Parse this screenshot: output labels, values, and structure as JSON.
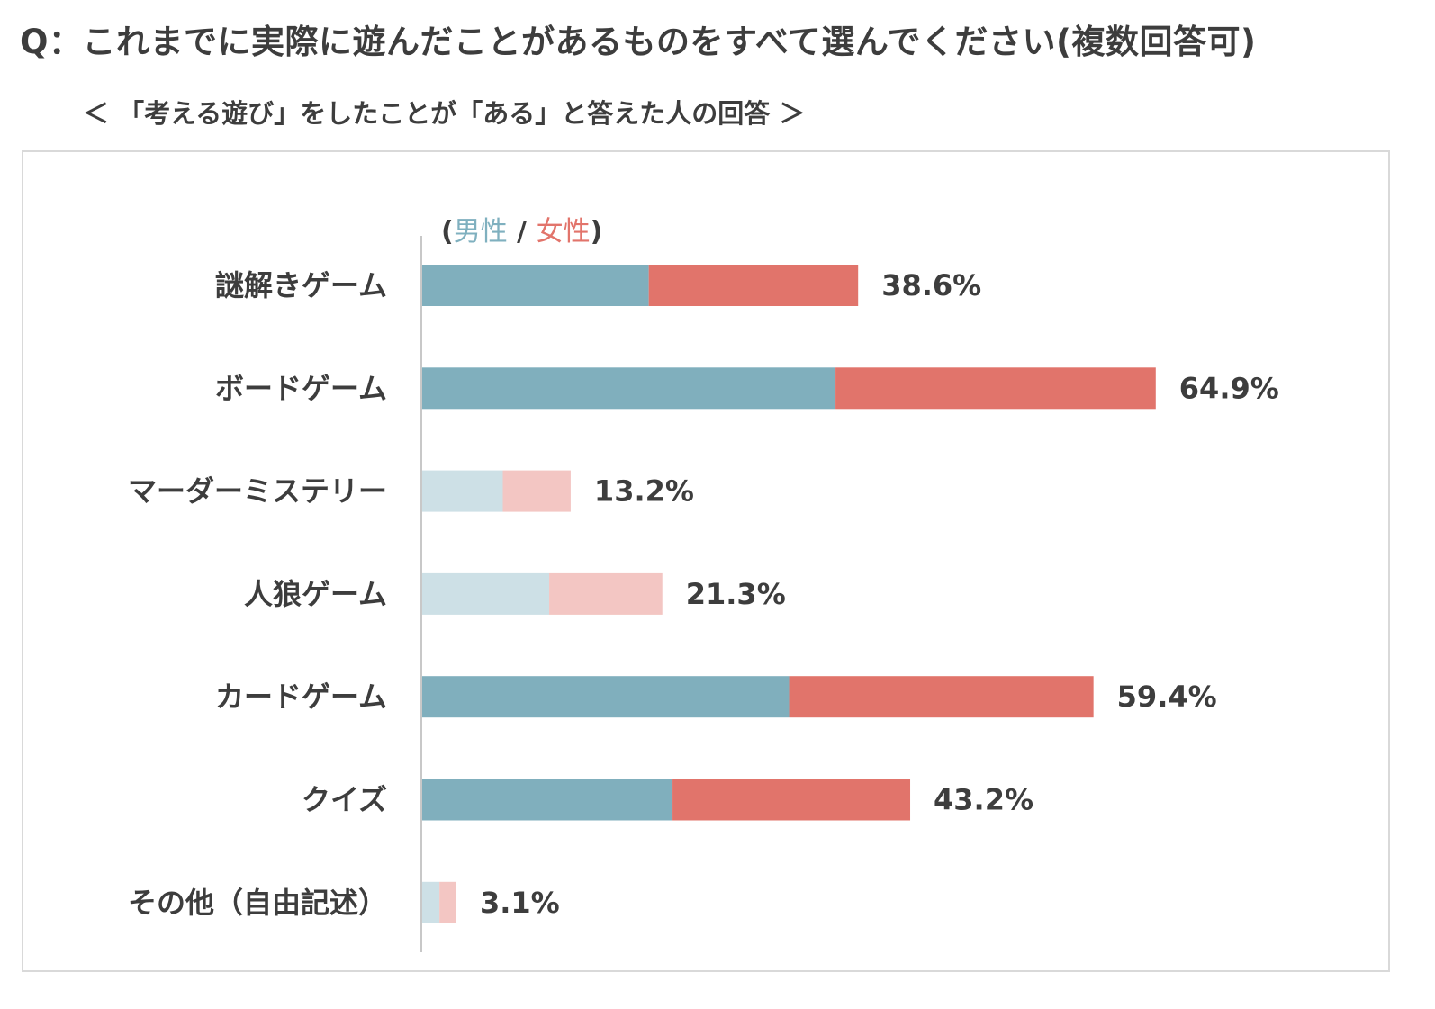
{
  "header": {
    "question": "Q：これまでに実際に遊んだことがあるものをすべて選んでください(複数回答可)",
    "subtitle": "＜ 「考える遊び」をしたことが「ある」と答えた人の回答 ＞"
  },
  "legend": {
    "open": "(",
    "male": "男性",
    "sep": " / ",
    "female": "女性",
    "close": ")"
  },
  "colors": {
    "male": "#80afbd",
    "female": "#e1746b",
    "male_light": "#cde0e6",
    "female_light": "#f3c6c3",
    "axis": "#c8c8c8",
    "text": "#3d3d3d"
  },
  "chart_data": {
    "type": "bar",
    "orientation": "horizontal",
    "stacked": true,
    "categories": [
      "謎解きゲーム",
      "ボードゲーム",
      "マーダーミステリー",
      "人狼ゲーム",
      "カードゲーム",
      "クイズ",
      "その他（自由記述）"
    ],
    "series": [
      {
        "name": "男性",
        "values": [
          20.1,
          36.6,
          7.2,
          11.3,
          32.5,
          22.2,
          1.6
        ]
      },
      {
        "name": "女性",
        "values": [
          18.5,
          28.3,
          6.0,
          10.0,
          26.9,
          21.0,
          1.5
        ]
      }
    ],
    "totals": [
      38.6,
      64.9,
      13.2,
      21.3,
      59.4,
      43.2,
      3.1
    ],
    "total_labels": [
      "38.6%",
      "64.9%",
      "13.2%",
      "21.3%",
      "59.4%",
      "43.2%",
      "3.1%"
    ],
    "highlighted": [
      true,
      true,
      false,
      false,
      true,
      true,
      false
    ],
    "xlim": [
      0,
      100
    ],
    "grid": false,
    "legend_position": "top-left"
  }
}
